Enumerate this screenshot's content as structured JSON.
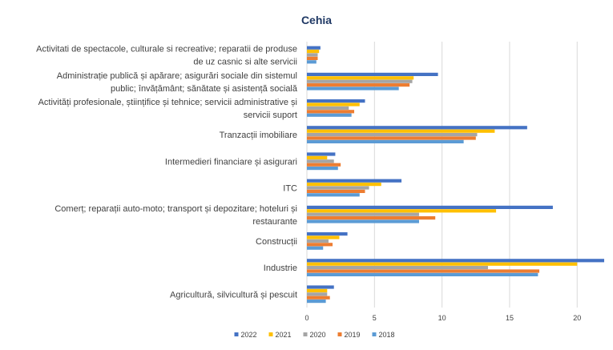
{
  "chart_data": {
    "type": "bar",
    "orientation": "horizontal",
    "title": "Cehia",
    "categories": [
      [
        "Activitati de spectacole, culturale si recreative; reparatii de produse",
        "de uz casnic si alte servicii"
      ],
      [
        "Administrație publică și apărare; asigurări sociale din sistemul",
        "public; învățământ; sănătate și asistență socială"
      ],
      [
        "Activități profesionale, științifice și tehnice; servicii administrative și",
        "servicii suport"
      ],
      [
        "Tranzacții imobiliare"
      ],
      [
        "Intermedieri financiare și asigurari"
      ],
      [
        "ITC"
      ],
      [
        "Comerț; reparații auto-moto; transport și depozitare; hoteluri și",
        "restaurante"
      ],
      [
        "Construcții"
      ],
      [
        "Industrie"
      ],
      [
        "Agricultură, silvicultură și pescuit"
      ]
    ],
    "series": [
      {
        "name": "2022",
        "color": "#4472c4",
        "values": [
          1.0,
          9.7,
          4.3,
          16.3,
          2.1,
          7.0,
          18.2,
          3.0,
          22.0,
          2.0
        ]
      },
      {
        "name": "2021",
        "color": "#ffc000",
        "values": [
          0.9,
          7.9,
          3.9,
          13.9,
          1.5,
          5.5,
          14.0,
          2.4,
          20.0,
          1.5
        ]
      },
      {
        "name": "2020",
        "color": "#a5a5a5",
        "values": [
          0.8,
          7.8,
          3.1,
          12.6,
          2.0,
          4.6,
          8.3,
          1.6,
          13.4,
          1.5
        ]
      },
      {
        "name": "2019",
        "color": "#ed7d31",
        "values": [
          0.8,
          7.6,
          3.5,
          12.5,
          2.5,
          4.3,
          9.5,
          1.9,
          17.2,
          1.7
        ]
      },
      {
        "name": "2018",
        "color": "#5b9bd5",
        "values": [
          0.7,
          6.8,
          3.3,
          11.6,
          2.3,
          3.9,
          8.3,
          1.2,
          17.1,
          1.4
        ]
      }
    ],
    "xlim": [
      0,
      22
    ],
    "xticks": [
      0,
      5,
      10,
      15,
      20
    ],
    "grid": "vertical",
    "legend": "bottom"
  }
}
